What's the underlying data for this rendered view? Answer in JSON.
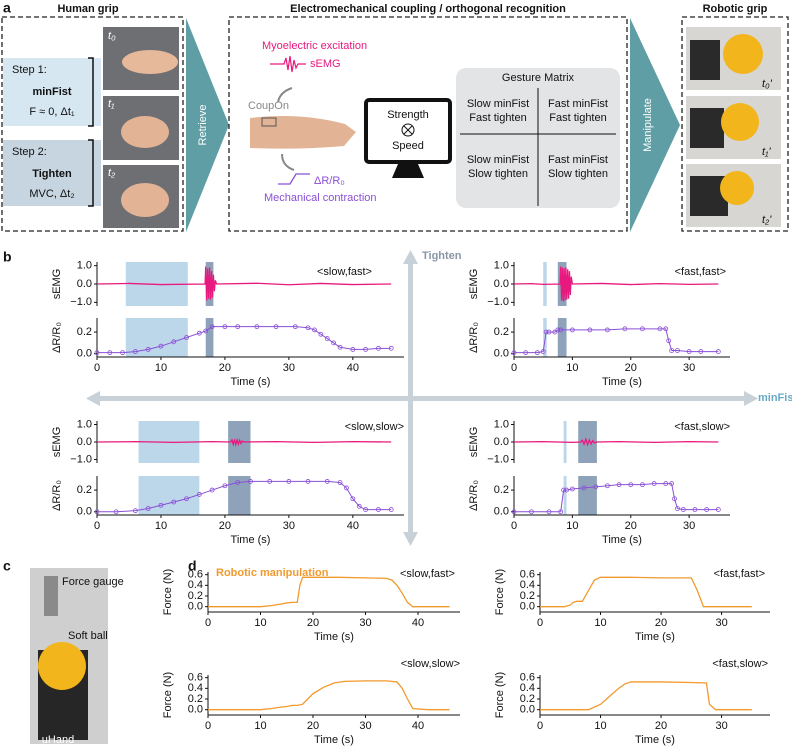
{
  "panel_labels": [
    "a",
    "b",
    "c",
    "d"
  ],
  "panel_a": {
    "human_grip_title": "Human grip",
    "step1": {
      "label": "Step 1:",
      "gesture": "minFist",
      "detail": "F ≈ 0, Δt₁"
    },
    "step2": {
      "label": "Step 2:",
      "gesture": "Tighten",
      "detail": "MVC, Δt₂"
    },
    "human_photo_labels": [
      "t₀",
      "t₁",
      "t₂"
    ],
    "retrieve": "Retrieve",
    "coupling_title": "Electromechanical coupling / orthogonal recognition",
    "myoelectric": "Myoelectric excitation",
    "semg": "sEMG",
    "coupon": "CoupOn",
    "resistance": "ΔR/R₀",
    "mechanical": "Mechanical contraction",
    "monitor": [
      "Strength",
      "Speed"
    ],
    "gesture_matrix": {
      "title": "Gesture Matrix",
      "cells": [
        [
          [
            "Slow minFist",
            "Fast tighten"
          ],
          [
            "Fast minFist",
            "Fast tighten"
          ]
        ],
        [
          [
            "Slow minFist",
            "Slow tighten"
          ],
          [
            "Fast minFist",
            "Slow tighten"
          ]
        ]
      ]
    },
    "manipulate": "Manipulate",
    "robotic_grip_title": "Robotic grip",
    "robot_photo_labels": [
      "t₀'",
      "t₁'",
      "t₂'"
    ]
  },
  "panel_b": {
    "vertical_axis_label": "Tighten",
    "horizontal_axis_label": "minFist"
  },
  "panel_c": {
    "labels": [
      "Force gauge",
      "Soft ball",
      "uHand"
    ]
  },
  "chart_data": [
    {
      "type": "line",
      "title": "<slow,fast>",
      "ylabel": "sEMG",
      "xlim": [
        0,
        48
      ],
      "ylim": [
        -1.2,
        1.2
      ],
      "yticks": [
        {
          "value": 1,
          "label": "1.0"
        },
        {
          "value": 0,
          "label": "0.0"
        },
        {
          "value": -1,
          "label": "−1.0"
        }
      ],
      "spans": [
        {
          "range": [
            4.5,
            14.2
          ],
          "color": "#bcd6ea"
        },
        {
          "range": [
            17,
            18.2
          ],
          "color": "#8ea3ba"
        }
      ],
      "series": [
        {
          "color": "#e8197e",
          "x": [
            0,
            5,
            10,
            16.9,
            17.0,
            17.15,
            17.3,
            17.45,
            17.6,
            17.75,
            17.9,
            18.05,
            18.2,
            18.35,
            18.5,
            18.7,
            25,
            30,
            35,
            40,
            46
          ],
          "values": [
            0,
            0.03,
            -0.03,
            0,
            0.95,
            -0.9,
            0.85,
            -0.8,
            0.9,
            -0.85,
            0.7,
            -0.75,
            0.5,
            -0.4,
            0.2,
            0,
            0.04,
            -0.04,
            0.03,
            -0.03,
            0
          ]
        }
      ]
    },
    {
      "type": "line",
      "ylabel": "ΔR/R₀",
      "xlabel": "Time (s)",
      "xlim": [
        0,
        48
      ],
      "ylim": [
        -0.03,
        0.33
      ],
      "xticks": [
        0,
        10,
        20,
        30,
        40
      ],
      "yticks": [
        {
          "value": 0.2,
          "label": "0.2"
        },
        {
          "value": 0,
          "label": "0.0"
        }
      ],
      "markers": true,
      "spans": [
        {
          "range": [
            4.5,
            14.2
          ],
          "color": "#bcd6ea"
        },
        {
          "range": [
            17,
            18.2
          ],
          "color": "#8ea3ba"
        }
      ],
      "series": [
        {
          "color": "#8a4fd6",
          "x": [
            0,
            2,
            4,
            6,
            8,
            10,
            12,
            14,
            16,
            17,
            18,
            20,
            22,
            25,
            28,
            31,
            33,
            34,
            35,
            36,
            37,
            38,
            40,
            42,
            44,
            46
          ],
          "values": [
            0.01,
            0.01,
            0.01,
            0.02,
            0.04,
            0.07,
            0.11,
            0.15,
            0.19,
            0.21,
            0.25,
            0.25,
            0.25,
            0.25,
            0.25,
            0.25,
            0.24,
            0.22,
            0.18,
            0.14,
            0.1,
            0.06,
            0.04,
            0.04,
            0.05,
            0.05
          ]
        }
      ]
    },
    {
      "type": "line",
      "title": "<fast,fast>",
      "ylabel": "sEMG",
      "xlim": [
        0,
        37
      ],
      "ylim": [
        -1.2,
        1.2
      ],
      "yticks": [
        {
          "value": 1,
          "label": "1.0"
        },
        {
          "value": 0,
          "label": "0.0"
        },
        {
          "value": -1,
          "label": "−1.0"
        }
      ],
      "spans": [
        {
          "range": [
            5,
            5.6
          ],
          "color": "#bcd6ea"
        },
        {
          "range": [
            7.5,
            9
          ],
          "color": "#8ea3ba"
        }
      ],
      "series": [
        {
          "color": "#e8197e",
          "x": [
            0,
            3,
            5,
            7.9,
            8.0,
            8.15,
            8.3,
            8.45,
            8.6,
            8.75,
            8.9,
            9.05,
            9.2,
            9.35,
            9.5,
            9.65,
            9.8,
            10,
            15,
            20,
            25,
            30,
            35
          ],
          "values": [
            0,
            0.02,
            -0.02,
            0,
            0.95,
            -0.9,
            0.9,
            -0.95,
            0.85,
            -0.9,
            0.9,
            -0.85,
            0.8,
            -0.8,
            0.7,
            -0.6,
            0.4,
            0,
            0.03,
            -0.03,
            0.02,
            -0.02,
            0
          ]
        }
      ]
    },
    {
      "type": "line",
      "ylabel": "ΔR/R₀",
      "xlabel": "Time (s)",
      "xlim": [
        0,
        37
      ],
      "ylim": [
        -0.03,
        0.33
      ],
      "xticks": [
        0,
        10,
        20,
        30
      ],
      "yticks": [
        {
          "value": 0.2,
          "label": "0.2"
        },
        {
          "value": 0,
          "label": "0.0"
        }
      ],
      "markers": true,
      "spans": [
        {
          "range": [
            5,
            5.6
          ],
          "color": "#bcd6ea"
        },
        {
          "range": [
            7.5,
            9
          ],
          "color": "#8ea3ba"
        }
      ],
      "series": [
        {
          "color": "#8a4fd6",
          "x": [
            0,
            2,
            4,
            5,
            5.5,
            6,
            7,
            7.5,
            8,
            10,
            13,
            16,
            19,
            22,
            25,
            26,
            26.5,
            27,
            28,
            30,
            32,
            35
          ],
          "values": [
            0.01,
            0.01,
            0.01,
            0.02,
            0.2,
            0.2,
            0.2,
            0.22,
            0.22,
            0.22,
            0.22,
            0.22,
            0.23,
            0.23,
            0.23,
            0.23,
            0.12,
            0.03,
            0.03,
            0.02,
            0.02,
            0.02
          ]
        }
      ]
    },
    {
      "type": "line",
      "title": "<slow,slow>",
      "ylabel": "sEMG",
      "xlim": [
        0,
        48
      ],
      "ylim": [
        -1.2,
        1.2
      ],
      "yticks": [
        {
          "value": 1,
          "label": "1.0"
        },
        {
          "value": 0,
          "label": "0.0"
        },
        {
          "value": -1,
          "label": "−1.0"
        }
      ],
      "spans": [
        {
          "range": [
            6.5,
            16
          ],
          "color": "#bcd6ea"
        },
        {
          "range": [
            20.5,
            24
          ],
          "color": "#8ea3ba"
        }
      ],
      "series": [
        {
          "color": "#e8197e",
          "x": [
            0,
            6,
            12,
            18,
            20.9,
            21.1,
            21.3,
            21.5,
            21.7,
            21.9,
            22.1,
            22.3,
            22.5,
            22.7,
            23,
            28,
            34,
            40,
            46
          ],
          "values": [
            0,
            0.02,
            -0.02,
            0.02,
            0,
            0.12,
            -0.13,
            0.15,
            -0.14,
            0.12,
            -0.12,
            0.1,
            -0.08,
            0.05,
            0,
            0.02,
            -0.02,
            0.02,
            0
          ]
        }
      ]
    },
    {
      "type": "line",
      "ylabel": "ΔR/R₀",
      "xlabel": "Time (s)",
      "xlim": [
        0,
        48
      ],
      "ylim": [
        -0.03,
        0.33
      ],
      "xticks": [
        0,
        10,
        20,
        30,
        40
      ],
      "yticks": [
        {
          "value": 0.2,
          "label": "0.2"
        },
        {
          "value": 0,
          "label": "0.0"
        }
      ],
      "markers": true,
      "spans": [
        {
          "range": [
            6.5,
            16
          ],
          "color": "#bcd6ea"
        },
        {
          "range": [
            20.5,
            24
          ],
          "color": "#8ea3ba"
        }
      ],
      "series": [
        {
          "color": "#8a4fd6",
          "x": [
            0,
            3,
            6,
            8,
            10,
            12,
            14,
            16,
            18,
            20,
            22,
            24,
            27,
            30,
            33,
            36,
            38,
            39,
            40,
            41,
            42,
            44,
            46
          ],
          "values": [
            0,
            0,
            0.01,
            0.03,
            0.06,
            0.09,
            0.12,
            0.16,
            0.2,
            0.24,
            0.27,
            0.28,
            0.28,
            0.28,
            0.28,
            0.28,
            0.27,
            0.22,
            0.12,
            0.05,
            0.02,
            0.02,
            0.02
          ]
        }
      ]
    },
    {
      "type": "line",
      "title": "<fast,slow>",
      "ylabel": "sEMG",
      "xlim": [
        0,
        37
      ],
      "ylim": [
        -1.2,
        1.2
      ],
      "yticks": [
        {
          "value": 1,
          "label": "1.0"
        },
        {
          "value": 0,
          "label": "0.0"
        },
        {
          "value": -1,
          "label": "−1.0"
        }
      ],
      "spans": [
        {
          "range": [
            8.5,
            9
          ],
          "color": "#bcd6ea"
        },
        {
          "range": [
            11,
            14.2
          ],
          "color": "#8ea3ba"
        }
      ],
      "series": [
        {
          "color": "#e8197e",
          "x": [
            0,
            5,
            10,
            11.4,
            11.7,
            12,
            12.3,
            12.6,
            12.9,
            13.2,
            13.5,
            13.8,
            14.1,
            18,
            24,
            30,
            35
          ],
          "values": [
            0,
            0.02,
            -0.02,
            0,
            0.1,
            -0.12,
            0.16,
            -0.15,
            0.12,
            -0.12,
            0.08,
            -0.06,
            0,
            0.02,
            -0.02,
            0.02,
            0
          ]
        }
      ]
    },
    {
      "type": "line",
      "ylabel": "ΔR/R₀",
      "xlabel": "Time (s)",
      "xlim": [
        0,
        37
      ],
      "ylim": [
        -0.03,
        0.33
      ],
      "xticks": [
        0,
        10,
        20,
        30
      ],
      "yticks": [
        {
          "value": 0.2,
          "label": "0.2"
        },
        {
          "value": 0,
          "label": "0.0"
        }
      ],
      "markers": true,
      "spans": [
        {
          "range": [
            8.5,
            9
          ],
          "color": "#bcd6ea"
        },
        {
          "range": [
            11,
            14.2
          ],
          "color": "#8ea3ba"
        }
      ],
      "series": [
        {
          "color": "#8a4fd6",
          "x": [
            0,
            3,
            6,
            8,
            8.5,
            9,
            10,
            12,
            14,
            16,
            18,
            20,
            22,
            24,
            26,
            27,
            27.5,
            28,
            29,
            31,
            33,
            35
          ],
          "values": [
            0,
            0,
            0,
            0,
            0.2,
            0.2,
            0.21,
            0.22,
            0.23,
            0.24,
            0.25,
            0.25,
            0.25,
            0.26,
            0.26,
            0.26,
            0.12,
            0.03,
            0.02,
            0.02,
            0.02,
            0.02
          ]
        }
      ]
    },
    {
      "type": "line",
      "title": "<slow,fast>",
      "annotation": "Robotic manipulation",
      "ylabel": "Force (N)",
      "xlabel": "Time (s)",
      "xlim": [
        0,
        48
      ],
      "ylim": [
        -0.1,
        0.65
      ],
      "xticks": [
        0,
        10,
        20,
        30,
        40
      ],
      "yticks": [
        {
          "value": 0.6,
          "label": "0.6"
        },
        {
          "value": 0.4,
          "label": "0.4"
        },
        {
          "value": 0.2,
          "label": "0.2"
        },
        {
          "value": 0,
          "label": "0.0"
        }
      ],
      "series": [
        {
          "color": "#f29a2e",
          "x": [
            0,
            5,
            10,
            12,
            14,
            15,
            16,
            17,
            17.5,
            18,
            20,
            25,
            30,
            34,
            35,
            36,
            37,
            38,
            39,
            42,
            46
          ],
          "values": [
            0,
            0,
            0,
            0.02,
            0.05,
            0.07,
            0.08,
            0.08,
            0.4,
            0.55,
            0.55,
            0.55,
            0.54,
            0.53,
            0.5,
            0.4,
            0.25,
            0.08,
            0,
            0,
            0
          ]
        }
      ]
    },
    {
      "type": "line",
      "title": "<fast,fast>",
      "ylabel": "Force (N)",
      "xlabel": "Time (s)",
      "xlim": [
        0,
        38
      ],
      "ylim": [
        -0.1,
        0.65
      ],
      "xticks": [
        0,
        10,
        20,
        30
      ],
      "yticks": [
        {
          "value": 0.6,
          "label": "0.6"
        },
        {
          "value": 0.4,
          "label": "0.4"
        },
        {
          "value": 0.2,
          "label": "0.2"
        },
        {
          "value": 0,
          "label": "0.0"
        }
      ],
      "series": [
        {
          "color": "#f29a2e",
          "x": [
            0,
            2,
            4,
            5,
            5.5,
            6,
            7,
            8,
            9,
            10,
            15,
            20,
            25,
            26,
            27,
            30,
            35
          ],
          "values": [
            0,
            0,
            0,
            0.03,
            0.08,
            0.1,
            0.1,
            0.3,
            0.5,
            0.55,
            0.55,
            0.54,
            0.54,
            0.3,
            0,
            0,
            0
          ]
        }
      ]
    },
    {
      "type": "line",
      "title": "<slow,slow>",
      "ylabel": "Force (N)",
      "xlabel": "Time (s)",
      "xlim": [
        0,
        48
      ],
      "ylim": [
        -0.1,
        0.65
      ],
      "xticks": [
        0,
        10,
        20,
        30,
        40
      ],
      "yticks": [
        {
          "value": 0.6,
          "label": "0.6"
        },
        {
          "value": 0.4,
          "label": "0.4"
        },
        {
          "value": 0.2,
          "label": "0.2"
        },
        {
          "value": 0,
          "label": "0.0"
        }
      ],
      "series": [
        {
          "color": "#f29a2e",
          "x": [
            0,
            5,
            10,
            12,
            14,
            15,
            16,
            17,
            18,
            19,
            20,
            22,
            24,
            26,
            30,
            34,
            36,
            37,
            38,
            39,
            42,
            46
          ],
          "values": [
            0,
            0,
            0,
            0.02,
            0.05,
            0.06,
            0.08,
            0.08,
            0.1,
            0.2,
            0.3,
            0.42,
            0.5,
            0.53,
            0.54,
            0.54,
            0.52,
            0.4,
            0.2,
            0.02,
            0,
            0
          ]
        }
      ]
    },
    {
      "type": "line",
      "title": "<fast,slow>",
      "ylabel": "Force (N)",
      "xlabel": "Time (s)",
      "xlim": [
        0,
        38
      ],
      "ylim": [
        -0.1,
        0.65
      ],
      "xticks": [
        0,
        10,
        20,
        30
      ],
      "yticks": [
        {
          "value": 0.6,
          "label": "0.6"
        },
        {
          "value": 0.4,
          "label": "0.4"
        },
        {
          "value": 0.2,
          "label": "0.2"
        },
        {
          "value": 0,
          "label": "0.0"
        }
      ],
      "series": [
        {
          "color": "#f29a2e",
          "x": [
            0,
            4,
            8,
            9,
            10,
            11,
            12,
            13,
            14,
            15,
            20,
            25,
            27.5,
            28,
            29,
            32,
            35
          ],
          "values": [
            0,
            0,
            0,
            0.05,
            0.1,
            0.2,
            0.3,
            0.4,
            0.48,
            0.52,
            0.52,
            0.51,
            0.5,
            0.1,
            0,
            0,
            0
          ]
        }
      ]
    }
  ]
}
